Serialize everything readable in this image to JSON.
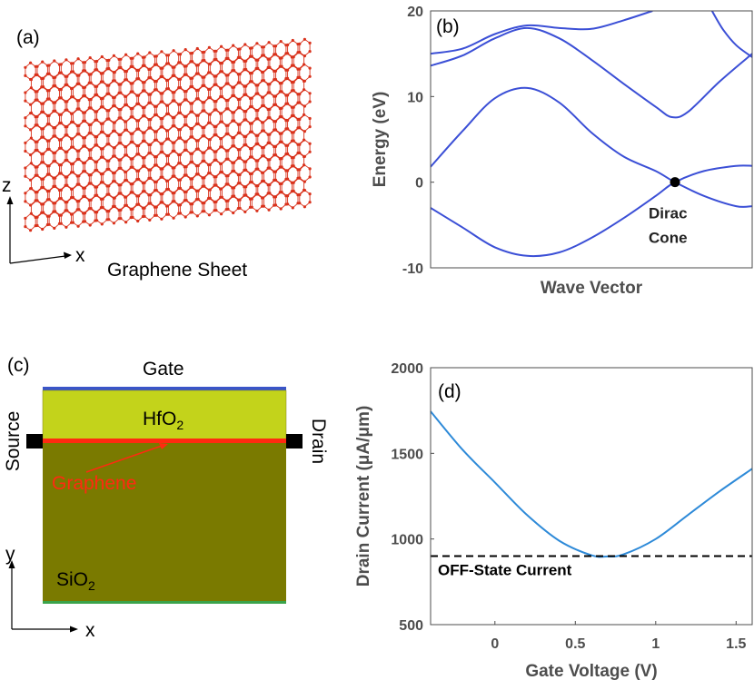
{
  "panels": {
    "a": {
      "label": "(a)",
      "caption": "Graphene Sheet",
      "axis_z": "z",
      "axis_x": "x",
      "atom_color": "#d9311b"
    },
    "c": {
      "label": "(c)",
      "gate": "Gate",
      "hfo2_base": "HfO",
      "hfo2_sub": "2",
      "sio2_base": "SiO",
      "sio2_sub": "2",
      "source": "Source",
      "drain": "Drain",
      "graphene": "Graphene",
      "axis_y": "y",
      "axis_x": "x",
      "colors": {
        "hfo2": "#c3d31b",
        "sio2": "#7a7a00",
        "graphene": "#ff2a10",
        "gate": "#3a55c8",
        "contact": "#000000",
        "substrate_line": "#3aa34a"
      }
    }
  },
  "chart_data": [
    {
      "id": "b",
      "type": "line",
      "label": "(b)",
      "title": "",
      "xlabel": "Wave Vector",
      "ylabel": "Energy (eV)",
      "xlim": [
        0,
        1
      ],
      "ylim": [
        -10,
        20
      ],
      "yticks": [
        "-10",
        "0",
        "10",
        "20"
      ],
      "color": "#3b4fd6",
      "series": [
        {
          "name": "band-1",
          "x": [
            0,
            0.1,
            0.2,
            0.3,
            0.4,
            0.5,
            0.6,
            0.7,
            0.76,
            0.85,
            0.95,
            1
          ],
          "y": [
            -3,
            -5.3,
            -7.6,
            -8.6,
            -8.2,
            -6.5,
            -4.2,
            -1.6,
            0,
            1.3,
            1.9,
            1.9
          ]
        },
        {
          "name": "band-2",
          "x": [
            0,
            0.1,
            0.2,
            0.3,
            0.4,
            0.5,
            0.6,
            0.7,
            0.76,
            0.85,
            0.95,
            1
          ],
          "y": [
            1.8,
            6,
            9.8,
            11,
            9.3,
            5.8,
            3,
            1.3,
            0,
            -1.6,
            -2.8,
            -2.8
          ]
        },
        {
          "name": "band-3",
          "x": [
            0,
            0.1,
            0.2,
            0.3,
            0.4,
            0.5,
            0.6,
            0.7,
            0.75,
            0.8,
            0.9,
            1
          ],
          "y": [
            13.6,
            14.8,
            16.8,
            18,
            16.8,
            14.3,
            11.5,
            8.8,
            7.6,
            8.2,
            11.8,
            15
          ]
        },
        {
          "name": "band-4",
          "x": [
            0,
            0.1,
            0.2,
            0.3,
            0.4,
            0.5,
            0.6,
            0.69
          ],
          "y": [
            15,
            15.6,
            17.3,
            18.3,
            18,
            17.9,
            18.9,
            20
          ]
        },
        {
          "name": "band-5",
          "x": [
            0.875,
            0.91,
            0.95,
            1
          ],
          "y": [
            20,
            17.8,
            16,
            14.6
          ]
        }
      ],
      "marker": {
        "x": 0.76,
        "y": 0,
        "text_line1": "Dirac",
        "text_line2": "Cone"
      }
    },
    {
      "id": "d",
      "type": "line",
      "label": "(d)",
      "title": "",
      "xlabel": "Gate Voltage (V)",
      "ylabel": "Drain Current (μA/μm)",
      "xlim": [
        -0.4,
        1.6
      ],
      "ylim": [
        500,
        2000
      ],
      "xticks": [
        "0",
        "0.5",
        "1",
        "1.5"
      ],
      "yticks": [
        "500",
        "1000",
        "1500",
        "2000"
      ],
      "series": [
        {
          "name": "drain-current",
          "color": "#2e8ad8",
          "x": [
            -0.4,
            -0.2,
            0,
            0.2,
            0.4,
            0.6,
            0.7,
            0.8,
            1.0,
            1.2,
            1.4,
            1.6
          ],
          "y": [
            1745,
            1520,
            1330,
            1140,
            990,
            905,
            898,
            910,
            1000,
            1140,
            1280,
            1410
          ]
        }
      ],
      "reference_line": {
        "y": 900,
        "label": "OFF-State Current",
        "style": "dashed",
        "color": "#000000"
      }
    }
  ]
}
